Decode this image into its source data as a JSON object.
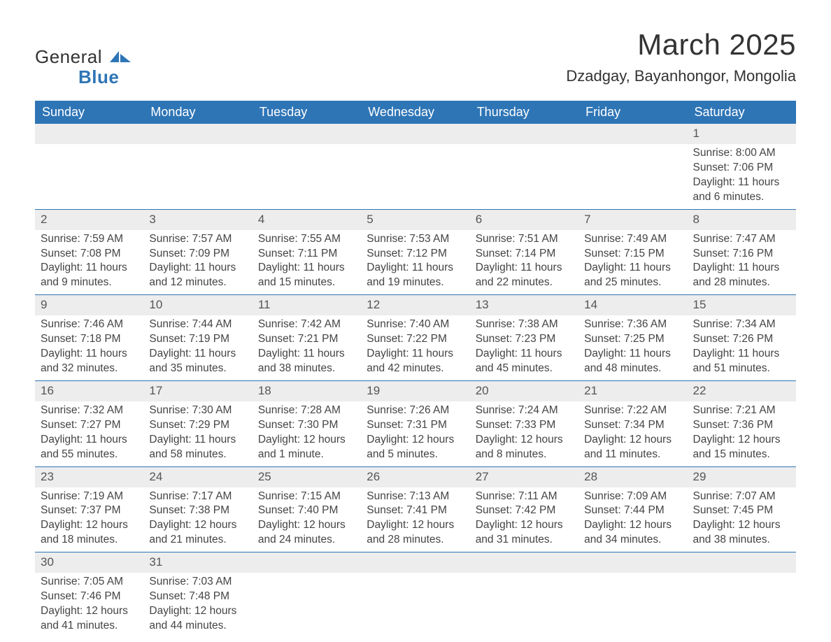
{
  "brand": {
    "general": "General",
    "blue": "Blue"
  },
  "title": "March 2025",
  "location": "Dzadgay, Bayanhongor, Mongolia",
  "colors": {
    "header_bg": "#2e75b6",
    "header_text": "#ffffff",
    "daynum_bg": "#ededed",
    "row_border": "#2e75b6",
    "body_text": "#444444",
    "page_bg": "#ffffff",
    "logo_accent": "#2e75b6"
  },
  "typography": {
    "title_fontsize": 42,
    "location_fontsize": 22,
    "header_fontsize": 18,
    "cell_fontsize": 15.5,
    "daynum_fontsize": 17,
    "logo_fontsize": 26
  },
  "weekdays": [
    "Sunday",
    "Monday",
    "Tuesday",
    "Wednesday",
    "Thursday",
    "Friday",
    "Saturday"
  ],
  "weeks": [
    [
      null,
      null,
      null,
      null,
      null,
      null,
      {
        "n": "1",
        "sr": "Sunrise: 8:00 AM",
        "ss": "Sunset: 7:06 PM",
        "d1": "Daylight: 11 hours",
        "d2": "and 6 minutes."
      }
    ],
    [
      {
        "n": "2",
        "sr": "Sunrise: 7:59 AM",
        "ss": "Sunset: 7:08 PM",
        "d1": "Daylight: 11 hours",
        "d2": "and 9 minutes."
      },
      {
        "n": "3",
        "sr": "Sunrise: 7:57 AM",
        "ss": "Sunset: 7:09 PM",
        "d1": "Daylight: 11 hours",
        "d2": "and 12 minutes."
      },
      {
        "n": "4",
        "sr": "Sunrise: 7:55 AM",
        "ss": "Sunset: 7:11 PM",
        "d1": "Daylight: 11 hours",
        "d2": "and 15 minutes."
      },
      {
        "n": "5",
        "sr": "Sunrise: 7:53 AM",
        "ss": "Sunset: 7:12 PM",
        "d1": "Daylight: 11 hours",
        "d2": "and 19 minutes."
      },
      {
        "n": "6",
        "sr": "Sunrise: 7:51 AM",
        "ss": "Sunset: 7:14 PM",
        "d1": "Daylight: 11 hours",
        "d2": "and 22 minutes."
      },
      {
        "n": "7",
        "sr": "Sunrise: 7:49 AM",
        "ss": "Sunset: 7:15 PM",
        "d1": "Daylight: 11 hours",
        "d2": "and 25 minutes."
      },
      {
        "n": "8",
        "sr": "Sunrise: 7:47 AM",
        "ss": "Sunset: 7:16 PM",
        "d1": "Daylight: 11 hours",
        "d2": "and 28 minutes."
      }
    ],
    [
      {
        "n": "9",
        "sr": "Sunrise: 7:46 AM",
        "ss": "Sunset: 7:18 PM",
        "d1": "Daylight: 11 hours",
        "d2": "and 32 minutes."
      },
      {
        "n": "10",
        "sr": "Sunrise: 7:44 AM",
        "ss": "Sunset: 7:19 PM",
        "d1": "Daylight: 11 hours",
        "d2": "and 35 minutes."
      },
      {
        "n": "11",
        "sr": "Sunrise: 7:42 AM",
        "ss": "Sunset: 7:21 PM",
        "d1": "Daylight: 11 hours",
        "d2": "and 38 minutes."
      },
      {
        "n": "12",
        "sr": "Sunrise: 7:40 AM",
        "ss": "Sunset: 7:22 PM",
        "d1": "Daylight: 11 hours",
        "d2": "and 42 minutes."
      },
      {
        "n": "13",
        "sr": "Sunrise: 7:38 AM",
        "ss": "Sunset: 7:23 PM",
        "d1": "Daylight: 11 hours",
        "d2": "and 45 minutes."
      },
      {
        "n": "14",
        "sr": "Sunrise: 7:36 AM",
        "ss": "Sunset: 7:25 PM",
        "d1": "Daylight: 11 hours",
        "d2": "and 48 minutes."
      },
      {
        "n": "15",
        "sr": "Sunrise: 7:34 AM",
        "ss": "Sunset: 7:26 PM",
        "d1": "Daylight: 11 hours",
        "d2": "and 51 minutes."
      }
    ],
    [
      {
        "n": "16",
        "sr": "Sunrise: 7:32 AM",
        "ss": "Sunset: 7:27 PM",
        "d1": "Daylight: 11 hours",
        "d2": "and 55 minutes."
      },
      {
        "n": "17",
        "sr": "Sunrise: 7:30 AM",
        "ss": "Sunset: 7:29 PM",
        "d1": "Daylight: 11 hours",
        "d2": "and 58 minutes."
      },
      {
        "n": "18",
        "sr": "Sunrise: 7:28 AM",
        "ss": "Sunset: 7:30 PM",
        "d1": "Daylight: 12 hours",
        "d2": "and 1 minute."
      },
      {
        "n": "19",
        "sr": "Sunrise: 7:26 AM",
        "ss": "Sunset: 7:31 PM",
        "d1": "Daylight: 12 hours",
        "d2": "and 5 minutes."
      },
      {
        "n": "20",
        "sr": "Sunrise: 7:24 AM",
        "ss": "Sunset: 7:33 PM",
        "d1": "Daylight: 12 hours",
        "d2": "and 8 minutes."
      },
      {
        "n": "21",
        "sr": "Sunrise: 7:22 AM",
        "ss": "Sunset: 7:34 PM",
        "d1": "Daylight: 12 hours",
        "d2": "and 11 minutes."
      },
      {
        "n": "22",
        "sr": "Sunrise: 7:21 AM",
        "ss": "Sunset: 7:36 PM",
        "d1": "Daylight: 12 hours",
        "d2": "and 15 minutes."
      }
    ],
    [
      {
        "n": "23",
        "sr": "Sunrise: 7:19 AM",
        "ss": "Sunset: 7:37 PM",
        "d1": "Daylight: 12 hours",
        "d2": "and 18 minutes."
      },
      {
        "n": "24",
        "sr": "Sunrise: 7:17 AM",
        "ss": "Sunset: 7:38 PM",
        "d1": "Daylight: 12 hours",
        "d2": "and 21 minutes."
      },
      {
        "n": "25",
        "sr": "Sunrise: 7:15 AM",
        "ss": "Sunset: 7:40 PM",
        "d1": "Daylight: 12 hours",
        "d2": "and 24 minutes."
      },
      {
        "n": "26",
        "sr": "Sunrise: 7:13 AM",
        "ss": "Sunset: 7:41 PM",
        "d1": "Daylight: 12 hours",
        "d2": "and 28 minutes."
      },
      {
        "n": "27",
        "sr": "Sunrise: 7:11 AM",
        "ss": "Sunset: 7:42 PM",
        "d1": "Daylight: 12 hours",
        "d2": "and 31 minutes."
      },
      {
        "n": "28",
        "sr": "Sunrise: 7:09 AM",
        "ss": "Sunset: 7:44 PM",
        "d1": "Daylight: 12 hours",
        "d2": "and 34 minutes."
      },
      {
        "n": "29",
        "sr": "Sunrise: 7:07 AM",
        "ss": "Sunset: 7:45 PM",
        "d1": "Daylight: 12 hours",
        "d2": "and 38 minutes."
      }
    ],
    [
      {
        "n": "30",
        "sr": "Sunrise: 7:05 AM",
        "ss": "Sunset: 7:46 PM",
        "d1": "Daylight: 12 hours",
        "d2": "and 41 minutes."
      },
      {
        "n": "31",
        "sr": "Sunrise: 7:03 AM",
        "ss": "Sunset: 7:48 PM",
        "d1": "Daylight: 12 hours",
        "d2": "and 44 minutes."
      },
      null,
      null,
      null,
      null,
      null
    ]
  ]
}
